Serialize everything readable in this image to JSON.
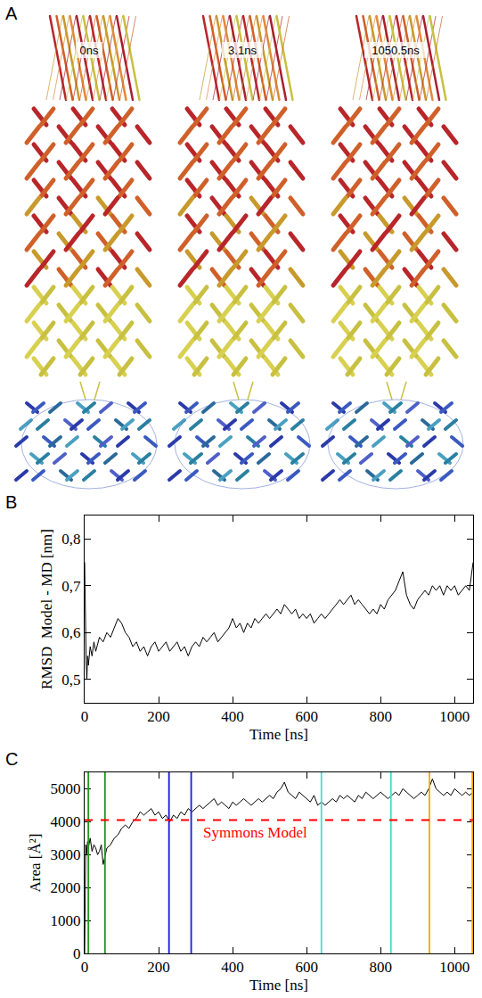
{
  "panel_a": {
    "label": "A",
    "snapshots": [
      "0ns",
      "3.1ns",
      "1050.5ns"
    ]
  },
  "chart_data": [
    {
      "type": "line",
      "panel": "B",
      "x_label": "Time [ns]",
      "y_label": "RMSD  Model - MD [nm]",
      "color": "#000000",
      "xlim": [
        0,
        1050
      ],
      "xticks": [
        0,
        200,
        400,
        600,
        800,
        1000
      ],
      "ylim": [
        0.45,
        0.85
      ],
      "yticks": [
        {
          "value": 0.5,
          "label": "0,5"
        },
        {
          "value": 0.6,
          "label": "0,6"
        },
        {
          "value": 0.7,
          "label": "0,7"
        },
        {
          "value": 0.8,
          "label": "0,8"
        }
      ],
      "x": [
        0,
        2,
        4,
        6,
        8,
        10,
        15,
        20,
        25,
        30,
        40,
        50,
        60,
        70,
        80,
        90,
        100,
        110,
        120,
        130,
        140,
        150,
        160,
        170,
        180,
        190,
        200,
        210,
        220,
        230,
        240,
        250,
        260,
        270,
        280,
        290,
        300,
        310,
        320,
        330,
        340,
        350,
        360,
        370,
        380,
        390,
        400,
        410,
        420,
        430,
        440,
        450,
        460,
        470,
        480,
        490,
        500,
        510,
        520,
        530,
        540,
        550,
        560,
        570,
        580,
        590,
        600,
        610,
        620,
        630,
        640,
        650,
        660,
        670,
        680,
        690,
        700,
        710,
        720,
        730,
        740,
        750,
        760,
        770,
        780,
        790,
        800,
        810,
        820,
        830,
        840,
        850,
        860,
        870,
        880,
        890,
        900,
        910,
        920,
        930,
        940,
        950,
        960,
        970,
        980,
        990,
        1000,
        1010,
        1020,
        1030,
        1040,
        1045,
        1050
      ],
      "values": [
        0.75,
        0.62,
        0.54,
        0.5,
        0.55,
        0.53,
        0.57,
        0.55,
        0.58,
        0.56,
        0.59,
        0.58,
        0.6,
        0.59,
        0.61,
        0.63,
        0.62,
        0.6,
        0.59,
        0.57,
        0.58,
        0.56,
        0.57,
        0.55,
        0.57,
        0.58,
        0.56,
        0.57,
        0.58,
        0.56,
        0.57,
        0.58,
        0.56,
        0.57,
        0.55,
        0.57,
        0.58,
        0.57,
        0.59,
        0.58,
        0.59,
        0.6,
        0.58,
        0.59,
        0.6,
        0.61,
        0.63,
        0.61,
        0.62,
        0.6,
        0.62,
        0.61,
        0.63,
        0.62,
        0.63,
        0.64,
        0.63,
        0.64,
        0.65,
        0.64,
        0.66,
        0.65,
        0.64,
        0.65,
        0.63,
        0.64,
        0.63,
        0.64,
        0.62,
        0.63,
        0.64,
        0.63,
        0.64,
        0.65,
        0.66,
        0.67,
        0.66,
        0.67,
        0.68,
        0.66,
        0.67,
        0.66,
        0.65,
        0.64,
        0.65,
        0.64,
        0.66,
        0.65,
        0.67,
        0.68,
        0.69,
        0.71,
        0.73,
        0.68,
        0.66,
        0.65,
        0.67,
        0.68,
        0.69,
        0.68,
        0.7,
        0.69,
        0.7,
        0.68,
        0.7,
        0.69,
        0.7,
        0.68,
        0.69,
        0.7,
        0.69,
        0.72,
        0.75
      ]
    },
    {
      "type": "line",
      "panel": "C",
      "x_label": "Time [ns]",
      "y_label": "Area [Å²]",
      "color": "#000000",
      "xlim": [
        0,
        1050
      ],
      "xticks": [
        0,
        200,
        400,
        600,
        800,
        1000
      ],
      "ylim": [
        0,
        5500
      ],
      "yticks": [
        0,
        1000,
        2000,
        3000,
        4000,
        5000
      ],
      "reference_line": {
        "y": 4050,
        "label": "Symmons Model",
        "color": "#ff0000",
        "line_style": "dashed"
      },
      "vertical_lines": [
        {
          "x": 10,
          "color": "#1f9a1f"
        },
        {
          "x": 55,
          "color": "#1f9a1f"
        },
        {
          "x": 228,
          "color": "#1a1adb"
        },
        {
          "x": 288,
          "color": "#1a1adb"
        },
        {
          "x": 640,
          "color": "#40e0d0"
        },
        {
          "x": 828,
          "color": "#40e0d0"
        },
        {
          "x": 932,
          "color": "#ffa500"
        },
        {
          "x": 1048,
          "color": "#ffa500"
        }
      ],
      "x": [
        0,
        1,
        2,
        3,
        5,
        8,
        10,
        15,
        20,
        25,
        30,
        35,
        40,
        45,
        50,
        55,
        60,
        70,
        80,
        90,
        100,
        110,
        120,
        130,
        140,
        150,
        160,
        170,
        180,
        190,
        200,
        210,
        220,
        230,
        240,
        250,
        260,
        270,
        280,
        290,
        300,
        310,
        320,
        330,
        340,
        350,
        360,
        370,
        380,
        390,
        400,
        410,
        420,
        430,
        440,
        450,
        460,
        470,
        480,
        490,
        500,
        510,
        520,
        530,
        540,
        550,
        560,
        570,
        580,
        590,
        600,
        610,
        620,
        630,
        640,
        650,
        660,
        670,
        680,
        690,
        700,
        710,
        720,
        730,
        740,
        750,
        760,
        770,
        780,
        790,
        800,
        810,
        820,
        830,
        840,
        850,
        860,
        870,
        880,
        890,
        900,
        910,
        920,
        930,
        940,
        950,
        960,
        970,
        980,
        990,
        1000,
        1010,
        1020,
        1030,
        1040,
        1050
      ],
      "values": [
        0,
        1200,
        2500,
        3300,
        3000,
        3400,
        3200,
        3500,
        3100,
        3300,
        3200,
        3000,
        3100,
        3300,
        2700,
        3000,
        3200,
        3300,
        3500,
        3600,
        3800,
        3900,
        3800,
        4000,
        4100,
        4300,
        4200,
        4300,
        4400,
        4200,
        4300,
        4100,
        4200,
        4000,
        4200,
        4100,
        4300,
        4200,
        4400,
        4300,
        4400,
        4500,
        4400,
        4500,
        4600,
        4700,
        4500,
        4600,
        4500,
        4400,
        4600,
        4500,
        4600,
        4700,
        4600,
        4500,
        4600,
        4700,
        4600,
        4700,
        4800,
        4700,
        4900,
        5000,
        5200,
        4900,
        4800,
        4700,
        4900,
        4800,
        4700,
        4600,
        4800,
        4500,
        4600,
        4500,
        4600,
        4700,
        4600,
        4800,
        4700,
        4800,
        4700,
        4600,
        4800,
        4700,
        4900,
        4800,
        4700,
        4800,
        4900,
        4800,
        4700,
        4800,
        4900,
        4800,
        5000,
        4900,
        4800,
        4700,
        4800,
        4900,
        4800,
        5000,
        5300,
        5000,
        4900,
        4800,
        4900,
        4800,
        5000,
        4900,
        4800,
        4900,
        4800,
        4900
      ]
    }
  ]
}
